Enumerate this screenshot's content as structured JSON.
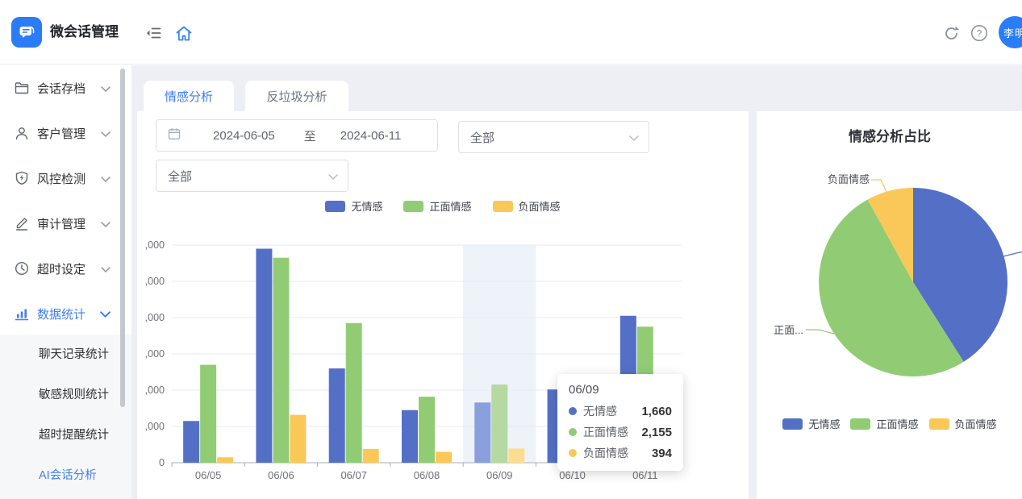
{
  "app": {
    "title": "微会话管理",
    "avatar_text": "李明"
  },
  "sidebar": {
    "items": [
      {
        "label": "会话存档",
        "icon": "folder-icon"
      },
      {
        "label": "客户管理",
        "icon": "user-icon"
      },
      {
        "label": "风控检测",
        "icon": "shield-icon"
      },
      {
        "label": "审计管理",
        "icon": "edit-icon"
      },
      {
        "label": "超时设定",
        "icon": "clock-icon"
      },
      {
        "label": "数据统计",
        "icon": "bar-chart-icon",
        "active": true
      }
    ],
    "submenu": [
      {
        "label": "聊天记录统计"
      },
      {
        "label": "敏感规则统计"
      },
      {
        "label": "超时提醒统计"
      },
      {
        "label": "AI会话分析",
        "active": true
      }
    ]
  },
  "tabs": [
    {
      "label": "情感分析",
      "active": true
    },
    {
      "label": "反垃圾分析",
      "active": false
    }
  ],
  "filters": {
    "date_start": "2024-06-05",
    "date_separator": "至",
    "date_end": "2024-06-11",
    "select1_value": "全部",
    "select2_value": "全部"
  },
  "chart_data": [
    {
      "type": "bar",
      "title": "",
      "categories": [
        "06/05",
        "06/06",
        "06/07",
        "06/08",
        "06/09",
        "06/10",
        "06/11"
      ],
      "series": [
        {
          "name": "无情感",
          "color": "#5470c6",
          "values": [
            1150,
            5900,
            2600,
            1450,
            1660,
            2020,
            4050
          ]
        },
        {
          "name": "正面情感",
          "color": "#91cc75",
          "values": [
            2700,
            5650,
            3850,
            1820,
            2155,
            2400,
            3750
          ]
        },
        {
          "name": "负面情感",
          "color": "#fac858",
          "values": [
            150,
            1320,
            380,
            300,
            394,
            450,
            560
          ]
        }
      ],
      "ylim": [
        0,
        6000
      ],
      "ytick_interval": 1000,
      "grid": true,
      "legend_position": "top",
      "highlighted_category": "06/09"
    },
    {
      "type": "pie",
      "title": "情感分析占比",
      "labels": [
        "无情感",
        "正面情感",
        "负面情感"
      ],
      "values": [
        41,
        51,
        8
      ],
      "unit": "percent_estimated",
      "colors": [
        "#5470c6",
        "#91cc75",
        "#fac858"
      ],
      "callout_labels": [
        "负面情感",
        "正面..."
      ],
      "legend_position": "bottom"
    }
  ],
  "tooltip": {
    "title": "06/09",
    "rows": [
      {
        "label": "无情感",
        "value": "1,660",
        "color": "#5470c6"
      },
      {
        "label": "正面情感",
        "value": "2,155",
        "color": "#91cc75"
      },
      {
        "label": "负面情感",
        "value": "394",
        "color": "#fac858"
      }
    ]
  },
  "colors": {
    "accent_blue": "#3d7ff0",
    "brand_blue": "#2b7cf7",
    "content_bg": "#edeff4"
  }
}
